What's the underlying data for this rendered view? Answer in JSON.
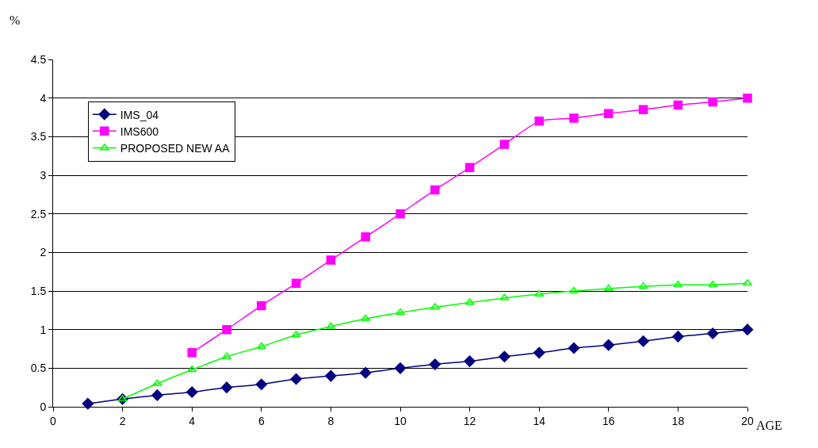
{
  "chart_data": {
    "type": "line",
    "ylabel": "%",
    "xlabel": "AGE",
    "xlim": [
      0,
      20
    ],
    "xticks": [
      0,
      2,
      4,
      6,
      8,
      10,
      12,
      14,
      16,
      18,
      20
    ],
    "ylim": [
      0,
      4.5
    ],
    "yticks": [
      0,
      0.5,
      1,
      1.5,
      2,
      2.5,
      3,
      3.5,
      4,
      4.5
    ],
    "grid": "y",
    "legend": "top left",
    "line_style": "solid",
    "series": [
      {
        "name": "IMS_04",
        "color": "#000080",
        "marker": "diamond",
        "x": [
          1,
          2,
          3,
          4,
          5,
          6,
          7,
          8,
          9,
          10,
          11,
          12,
          13,
          14,
          15,
          16,
          17,
          18,
          19,
          20
        ],
        "values": [
          0.04,
          0.1,
          0.15,
          0.19,
          0.25,
          0.29,
          0.36,
          0.4,
          0.44,
          0.5,
          0.55,
          0.59,
          0.65,
          0.7,
          0.76,
          0.8,
          0.85,
          0.91,
          0.95,
          1.0
        ]
      },
      {
        "name": "IMS600",
        "color": "#ff00ff",
        "marker": "square",
        "x": [
          4,
          5,
          6,
          7,
          8,
          9,
          10,
          11,
          12,
          13,
          14,
          15,
          16,
          17,
          18,
          19,
          20
        ],
        "values": [
          0.7,
          1.0,
          1.31,
          1.6,
          1.9,
          2.2,
          2.5,
          2.81,
          3.1,
          3.4,
          3.7,
          3.74,
          3.8,
          3.85,
          3.91,
          3.95,
          4.0
        ]
      },
      {
        "name": "PROPOSED NEW AA",
        "color": "#00ff00",
        "marker": "triangle",
        "x": [
          2,
          3,
          4,
          5,
          6,
          7,
          8,
          9,
          10,
          11,
          12,
          13,
          14,
          15,
          16,
          17,
          18,
          19,
          20
        ],
        "values": [
          0.1,
          0.3,
          0.48,
          0.65,
          0.78,
          0.93,
          1.04,
          1.14,
          1.22,
          1.29,
          1.35,
          1.41,
          1.46,
          1.5,
          1.53,
          1.56,
          1.58,
          1.58,
          1.6
        ]
      }
    ]
  }
}
